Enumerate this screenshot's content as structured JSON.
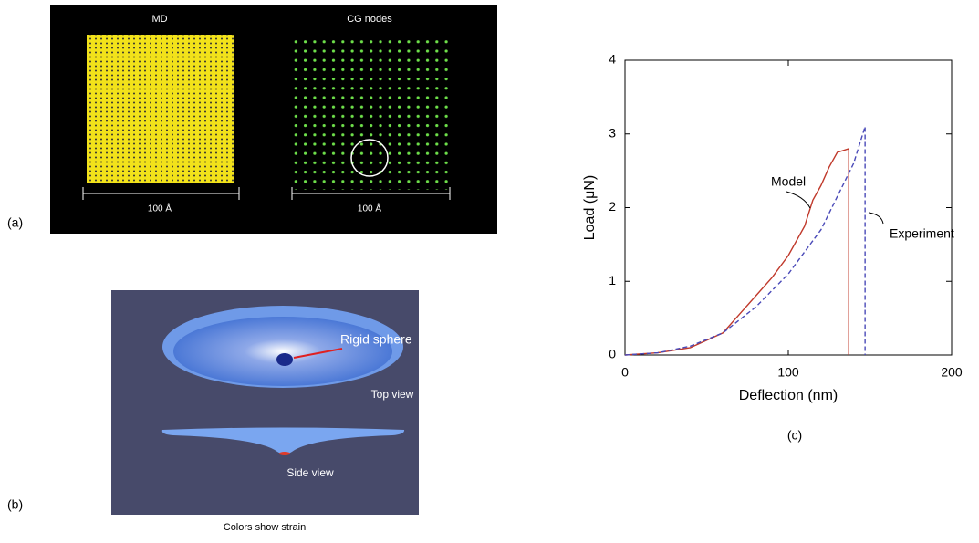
{
  "panels": {
    "a": {
      "label": "(a)",
      "left_title": "MD",
      "right_title": "CG nodes",
      "left_scale": "100 Å",
      "right_scale": "100 Å"
    },
    "b": {
      "label": "(b)",
      "callout": "Rigid sphere",
      "top_view": "Top view",
      "side_view": "Side view",
      "caption": "Colors show strain"
    },
    "c": {
      "label": "(c)"
    }
  },
  "chart_data": {
    "type": "line",
    "xlabel": "Deflection (nm)",
    "ylabel": "Load (μN)",
    "xlim": [
      0,
      200
    ],
    "xticks": [
      0,
      100,
      200
    ],
    "ylim": [
      0,
      4
    ],
    "yticks": [
      0,
      1,
      2,
      3,
      4
    ],
    "series": [
      {
        "name": "Model",
        "color": "#c0392b",
        "style": "solid",
        "x": [
          0,
          20,
          40,
          50,
          60,
          70,
          80,
          90,
          100,
          110,
          115,
          120,
          125,
          130,
          137,
          137
        ],
        "values": [
          0,
          0.03,
          0.1,
          0.2,
          0.3,
          0.55,
          0.8,
          1.05,
          1.35,
          1.75,
          2.1,
          2.3,
          2.55,
          2.75,
          2.8,
          0
        ]
      },
      {
        "name": "Experiment",
        "color": "#4a4ab8",
        "style": "dashed",
        "x": [
          0,
          20,
          40,
          60,
          80,
          100,
          120,
          140,
          147,
          147
        ],
        "values": [
          0,
          0.03,
          0.12,
          0.3,
          0.65,
          1.1,
          1.7,
          2.6,
          3.1,
          0
        ]
      }
    ]
  }
}
